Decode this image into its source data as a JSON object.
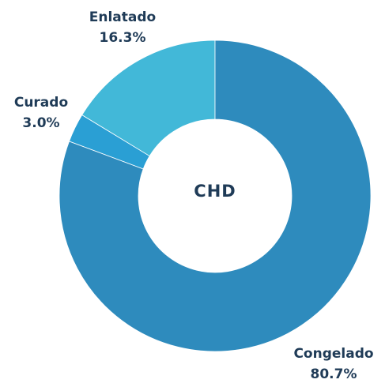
{
  "chart_data": {
    "type": "donut",
    "center_label": "CHD",
    "categories": [
      "Congelado",
      "Curado",
      "Enlatado"
    ],
    "values": [
      80.7,
      3.0,
      16.3
    ],
    "value_labels": [
      "80.7%",
      "3.0%",
      "16.3%"
    ],
    "colors": [
      "#2e8bbd",
      "#2a9fd4",
      "#42b8d8"
    ]
  }
}
